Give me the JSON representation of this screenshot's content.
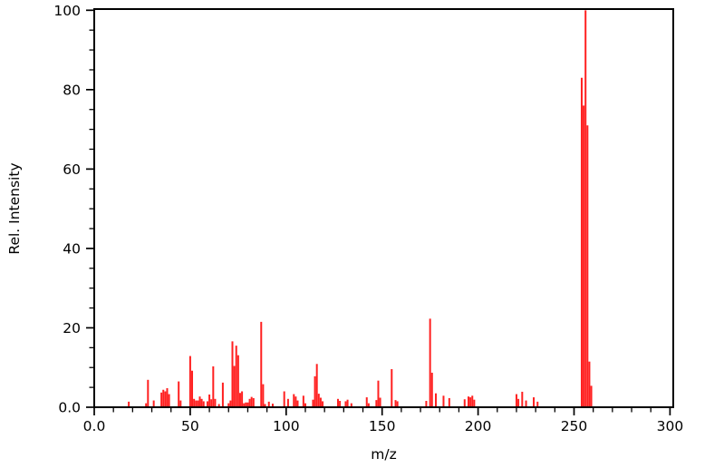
{
  "chart_data": {
    "type": "bar",
    "title": "",
    "xlabel": "m/z",
    "ylabel": "Rel. Intensity",
    "xlim": [
      0,
      301.7
    ],
    "ylim": [
      0,
      100.3
    ],
    "grid": false,
    "legend": null,
    "bar_color": "#ff2020",
    "frame_color": "#000000",
    "x_major_ticks": [
      0,
      50,
      100,
      150,
      200,
      250,
      300
    ],
    "x_major_labels": [
      "0.0",
      "50",
      "100",
      "150",
      "200",
      "250",
      "300"
    ],
    "x_minor_step": 10,
    "y_major_ticks": [
      0,
      20,
      40,
      60,
      80,
      100
    ],
    "y_major_labels": [
      "0.0",
      "20",
      "40",
      "60",
      "80",
      "100"
    ],
    "y_minor_step": 5,
    "peaks": [
      [
        18,
        1.4
      ],
      [
        27,
        1.0
      ],
      [
        28,
        6.9
      ],
      [
        31,
        1.7
      ],
      [
        35,
        3.7
      ],
      [
        36,
        4.4
      ],
      [
        37,
        4.0
      ],
      [
        38,
        4.8
      ],
      [
        39,
        3.3
      ],
      [
        44,
        6.5
      ],
      [
        45,
        1.7
      ],
      [
        50,
        12.9
      ],
      [
        51,
        9.2
      ],
      [
        52,
        2.1
      ],
      [
        53,
        1.7
      ],
      [
        54,
        1.7
      ],
      [
        55,
        2.7
      ],
      [
        56,
        2.1
      ],
      [
        57,
        1.5
      ],
      [
        59,
        1.5
      ],
      [
        60,
        3.2
      ],
      [
        61,
        2.0
      ],
      [
        62,
        10.3
      ],
      [
        63,
        2.1
      ],
      [
        65,
        0.8
      ],
      [
        67,
        6.2
      ],
      [
        70,
        1.0
      ],
      [
        71,
        1.7
      ],
      [
        72,
        16.6
      ],
      [
        73,
        10.4
      ],
      [
        74,
        15.5
      ],
      [
        75,
        13.1
      ],
      [
        76,
        3.6
      ],
      [
        77,
        4.0
      ],
      [
        78,
        1.0
      ],
      [
        79,
        1.2
      ],
      [
        80,
        1.2
      ],
      [
        81,
        2.1
      ],
      [
        82,
        2.6
      ],
      [
        83,
        2.3
      ],
      [
        87,
        21.5
      ],
      [
        88,
        5.8
      ],
      [
        89,
        0.8
      ],
      [
        91,
        1.4
      ],
      [
        93,
        0.9
      ],
      [
        99,
        4.0
      ],
      [
        101,
        2.1
      ],
      [
        104,
        3.3
      ],
      [
        105,
        2.7
      ],
      [
        106,
        1.7
      ],
      [
        109,
        2.9
      ],
      [
        110,
        1.0
      ],
      [
        114,
        1.9
      ],
      [
        115,
        7.8
      ],
      [
        116,
        10.9
      ],
      [
        117,
        3.4
      ],
      [
        118,
        2.4
      ],
      [
        119,
        1.5
      ],
      [
        127,
        2.1
      ],
      [
        128,
        1.6
      ],
      [
        131,
        1.5
      ],
      [
        132,
        1.9
      ],
      [
        134,
        1.0
      ],
      [
        142,
        2.5
      ],
      [
        143,
        1.0
      ],
      [
        147,
        1.8
      ],
      [
        148,
        6.7
      ],
      [
        149,
        2.4
      ],
      [
        155,
        9.6
      ],
      [
        157,
        1.8
      ],
      [
        158,
        1.5
      ],
      [
        173,
        1.6
      ],
      [
        175,
        22.3
      ],
      [
        176,
        8.7
      ],
      [
        178,
        3.5
      ],
      [
        182,
        2.9
      ],
      [
        185,
        2.3
      ],
      [
        193,
        2.0
      ],
      [
        195,
        2.7
      ],
      [
        196,
        2.5
      ],
      [
        197,
        2.9
      ],
      [
        198,
        1.9
      ],
      [
        220,
        3.3
      ],
      [
        221,
        2.1
      ],
      [
        223,
        3.9
      ],
      [
        225,
        1.7
      ],
      [
        229,
        2.5
      ],
      [
        231,
        1.4
      ],
      [
        254,
        83
      ],
      [
        255,
        76
      ],
      [
        256,
        100
      ],
      [
        257,
        71
      ],
      [
        258,
        11.5
      ],
      [
        259,
        5.4
      ]
    ]
  },
  "layout_note": "EI mass spectrum stick plot, red peaks on white background, black frame, ticks outside"
}
